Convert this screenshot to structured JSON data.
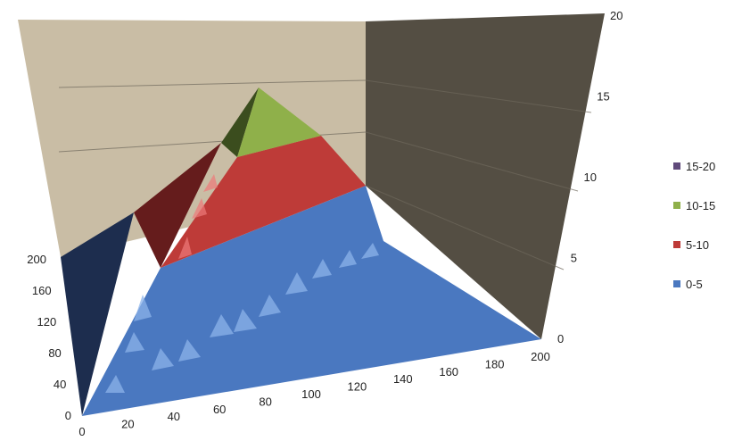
{
  "chart_data": {
    "type": "surface",
    "title": "",
    "x_ticks": [
      "0",
      "20",
      "40",
      "60",
      "80",
      "100",
      "120",
      "140",
      "160",
      "180",
      "200"
    ],
    "y_ticks": [
      "0",
      "40",
      "80",
      "120",
      "160",
      "200"
    ],
    "z_ticks": [
      "0",
      "5",
      "10",
      "15",
      "20"
    ],
    "zlim": [
      0,
      20
    ],
    "bands": [
      {
        "name": "15-20",
        "range": [
          15,
          20
        ],
        "color": "#604a7b"
      },
      {
        "name": "10-15",
        "range": [
          10,
          15
        ],
        "color": "#8fb04a"
      },
      {
        "name": "5-10",
        "range": [
          5,
          10
        ],
        "color": "#be3b38"
      },
      {
        "name": "0-5",
        "range": [
          0,
          5
        ],
        "color": "#4a78c0"
      }
    ],
    "peak": {
      "x": 0,
      "y": 0,
      "z": 17
    },
    "legend_position": "right",
    "grid": true
  }
}
